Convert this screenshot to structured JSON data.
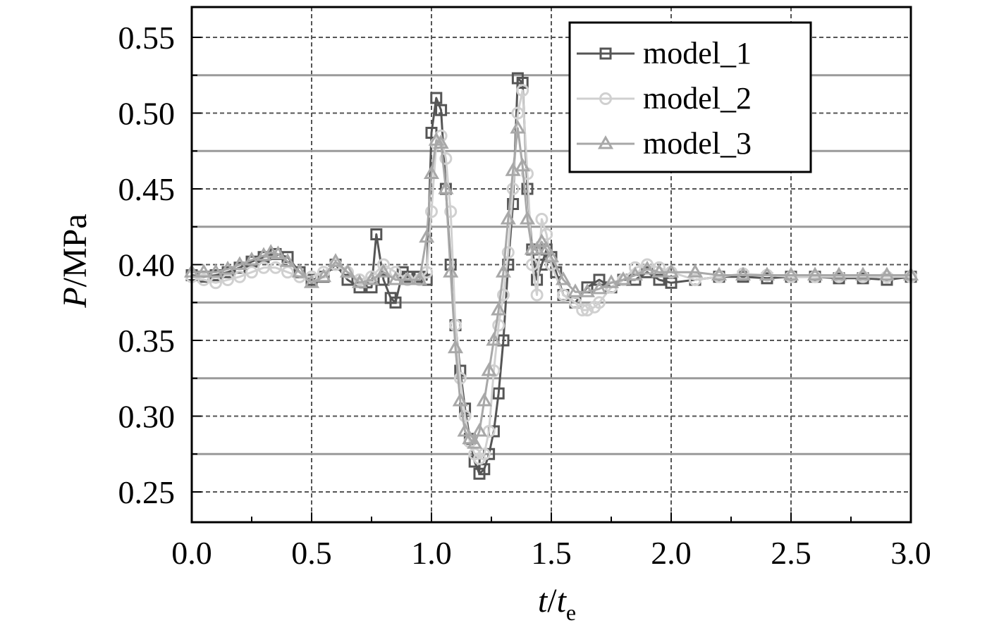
{
  "chart_data": {
    "type": "line",
    "title": "",
    "xlabel": {
      "main": "t",
      "sep": "/",
      "denom": "t",
      "sub": "e"
    },
    "ylabel": {
      "italic": "P",
      "rest": "/MPa"
    },
    "xlim": [
      0.0,
      3.0
    ],
    "ylim": [
      0.23,
      0.57
    ],
    "xticks": [
      0.0,
      0.5,
      1.0,
      1.5,
      2.0,
      2.5,
      3.0
    ],
    "xtick_labels": [
      "0.0",
      "0.5",
      "1.0",
      "1.5",
      "2.0",
      "2.5",
      "3.0"
    ],
    "yticks": [
      0.25,
      0.3,
      0.35,
      0.4,
      0.45,
      0.5,
      0.55
    ],
    "ytick_labels": [
      "0.25",
      "0.30",
      "0.35",
      "0.40",
      "0.45",
      "0.50",
      "0.55"
    ],
    "grid": true,
    "legend_position": "top-right",
    "series": [
      {
        "name": "model_1",
        "color": "#555555",
        "marker": "square",
        "x": [
          0.0,
          0.05,
          0.1,
          0.15,
          0.2,
          0.25,
          0.3,
          0.35,
          0.4,
          0.45,
          0.5,
          0.55,
          0.6,
          0.65,
          0.7,
          0.75,
          0.77,
          0.8,
          0.83,
          0.85,
          0.88,
          0.9,
          0.95,
          0.98,
          1.0,
          1.02,
          1.04,
          1.06,
          1.08,
          1.1,
          1.12,
          1.14,
          1.16,
          1.18,
          1.2,
          1.22,
          1.24,
          1.26,
          1.28,
          1.3,
          1.32,
          1.34,
          1.36,
          1.38,
          1.4,
          1.42,
          1.44,
          1.46,
          1.48,
          1.5,
          1.52,
          1.55,
          1.6,
          1.65,
          1.7,
          1.75,
          1.8,
          1.85,
          1.9,
          1.95,
          2.0,
          2.1,
          2.2,
          2.3,
          2.4,
          2.5,
          2.6,
          2.7,
          2.8,
          2.9,
          3.0
        ],
        "y": [
          0.393,
          0.392,
          0.393,
          0.395,
          0.398,
          0.402,
          0.405,
          0.407,
          0.405,
          0.395,
          0.39,
          0.392,
          0.4,
          0.39,
          0.385,
          0.385,
          0.42,
          0.39,
          0.378,
          0.375,
          0.395,
          0.392,
          0.392,
          0.39,
          0.487,
          0.51,
          0.502,
          0.45,
          0.4,
          0.36,
          0.33,
          0.305,
          0.285,
          0.27,
          0.262,
          0.265,
          0.275,
          0.29,
          0.315,
          0.35,
          0.4,
          0.44,
          0.523,
          0.52,
          0.45,
          0.41,
          0.39,
          0.4,
          0.41,
          0.405,
          0.395,
          0.38,
          0.375,
          0.385,
          0.39,
          0.385,
          0.39,
          0.39,
          0.395,
          0.39,
          0.388,
          0.39,
          0.392,
          0.392,
          0.391,
          0.392,
          0.392,
          0.391,
          0.391,
          0.39,
          0.392
        ]
      },
      {
        "name": "model_2",
        "color": "#d0d0d0",
        "marker": "circle",
        "x": [
          0.0,
          0.05,
          0.1,
          0.15,
          0.2,
          0.25,
          0.3,
          0.35,
          0.4,
          0.45,
          0.5,
          0.55,
          0.6,
          0.65,
          0.7,
          0.75,
          0.8,
          0.85,
          0.9,
          0.95,
          0.98,
          1.0,
          1.02,
          1.04,
          1.06,
          1.08,
          1.1,
          1.12,
          1.14,
          1.16,
          1.18,
          1.2,
          1.22,
          1.24,
          1.26,
          1.28,
          1.3,
          1.32,
          1.34,
          1.36,
          1.38,
          1.4,
          1.42,
          1.44,
          1.46,
          1.48,
          1.5,
          1.55,
          1.6,
          1.63,
          1.65,
          1.68,
          1.7,
          1.75,
          1.8,
          1.85,
          1.9,
          1.95,
          2.0,
          2.1,
          2.2,
          2.3,
          2.4,
          2.5,
          2.6,
          2.7,
          2.8,
          2.9,
          3.0
        ],
        "y": [
          0.392,
          0.39,
          0.388,
          0.39,
          0.392,
          0.395,
          0.398,
          0.398,
          0.395,
          0.392,
          0.392,
          0.395,
          0.4,
          0.395,
          0.39,
          0.392,
          0.4,
          0.395,
          0.39,
          0.39,
          0.395,
          0.435,
          0.48,
          0.485,
          0.47,
          0.435,
          0.36,
          0.325,
          0.3,
          0.283,
          0.275,
          0.272,
          0.275,
          0.29,
          0.33,
          0.36,
          0.38,
          0.408,
          0.45,
          0.5,
          0.515,
          0.46,
          0.4,
          0.38,
          0.43,
          0.42,
          0.4,
          0.38,
          0.375,
          0.37,
          0.37,
          0.372,
          0.375,
          0.385,
          0.39,
          0.398,
          0.4,
          0.398,
          0.395,
          0.39,
          0.392,
          0.394,
          0.393,
          0.392,
          0.392,
          0.392,
          0.392,
          0.392,
          0.392
        ]
      },
      {
        "name": "model_3",
        "color": "#a8a8a8",
        "marker": "triangle",
        "x": [
          0.0,
          0.05,
          0.1,
          0.15,
          0.2,
          0.25,
          0.3,
          0.33,
          0.36,
          0.4,
          0.45,
          0.5,
          0.55,
          0.6,
          0.65,
          0.7,
          0.75,
          0.8,
          0.85,
          0.9,
          0.95,
          0.98,
          1.0,
          1.02,
          1.04,
          1.06,
          1.08,
          1.1,
          1.12,
          1.14,
          1.16,
          1.18,
          1.2,
          1.22,
          1.24,
          1.26,
          1.28,
          1.3,
          1.32,
          1.34,
          1.36,
          1.38,
          1.4,
          1.42,
          1.44,
          1.46,
          1.48,
          1.5,
          1.55,
          1.6,
          1.65,
          1.7,
          1.75,
          1.8,
          1.85,
          1.9,
          1.95,
          2.0,
          2.1,
          2.2,
          2.3,
          2.4,
          2.5,
          2.6,
          2.7,
          2.8,
          2.9,
          3.0
        ],
        "y": [
          0.395,
          0.395,
          0.395,
          0.397,
          0.4,
          0.403,
          0.406,
          0.408,
          0.407,
          0.402,
          0.395,
          0.388,
          0.392,
          0.402,
          0.395,
          0.388,
          0.39,
          0.395,
          0.39,
          0.39,
          0.39,
          0.418,
          0.46,
          0.482,
          0.48,
          0.45,
          0.395,
          0.345,
          0.31,
          0.29,
          0.285,
          0.282,
          0.29,
          0.31,
          0.33,
          0.35,
          0.37,
          0.395,
          0.43,
          0.462,
          0.49,
          0.465,
          0.43,
          0.41,
          0.41,
          0.415,
          0.41,
          0.405,
          0.39,
          0.382,
          0.382,
          0.384,
          0.388,
          0.39,
          0.393,
          0.397,
          0.395,
          0.395,
          0.395,
          0.393,
          0.393,
          0.393,
          0.393,
          0.393,
          0.393,
          0.393,
          0.393,
          0.393
        ]
      }
    ]
  }
}
